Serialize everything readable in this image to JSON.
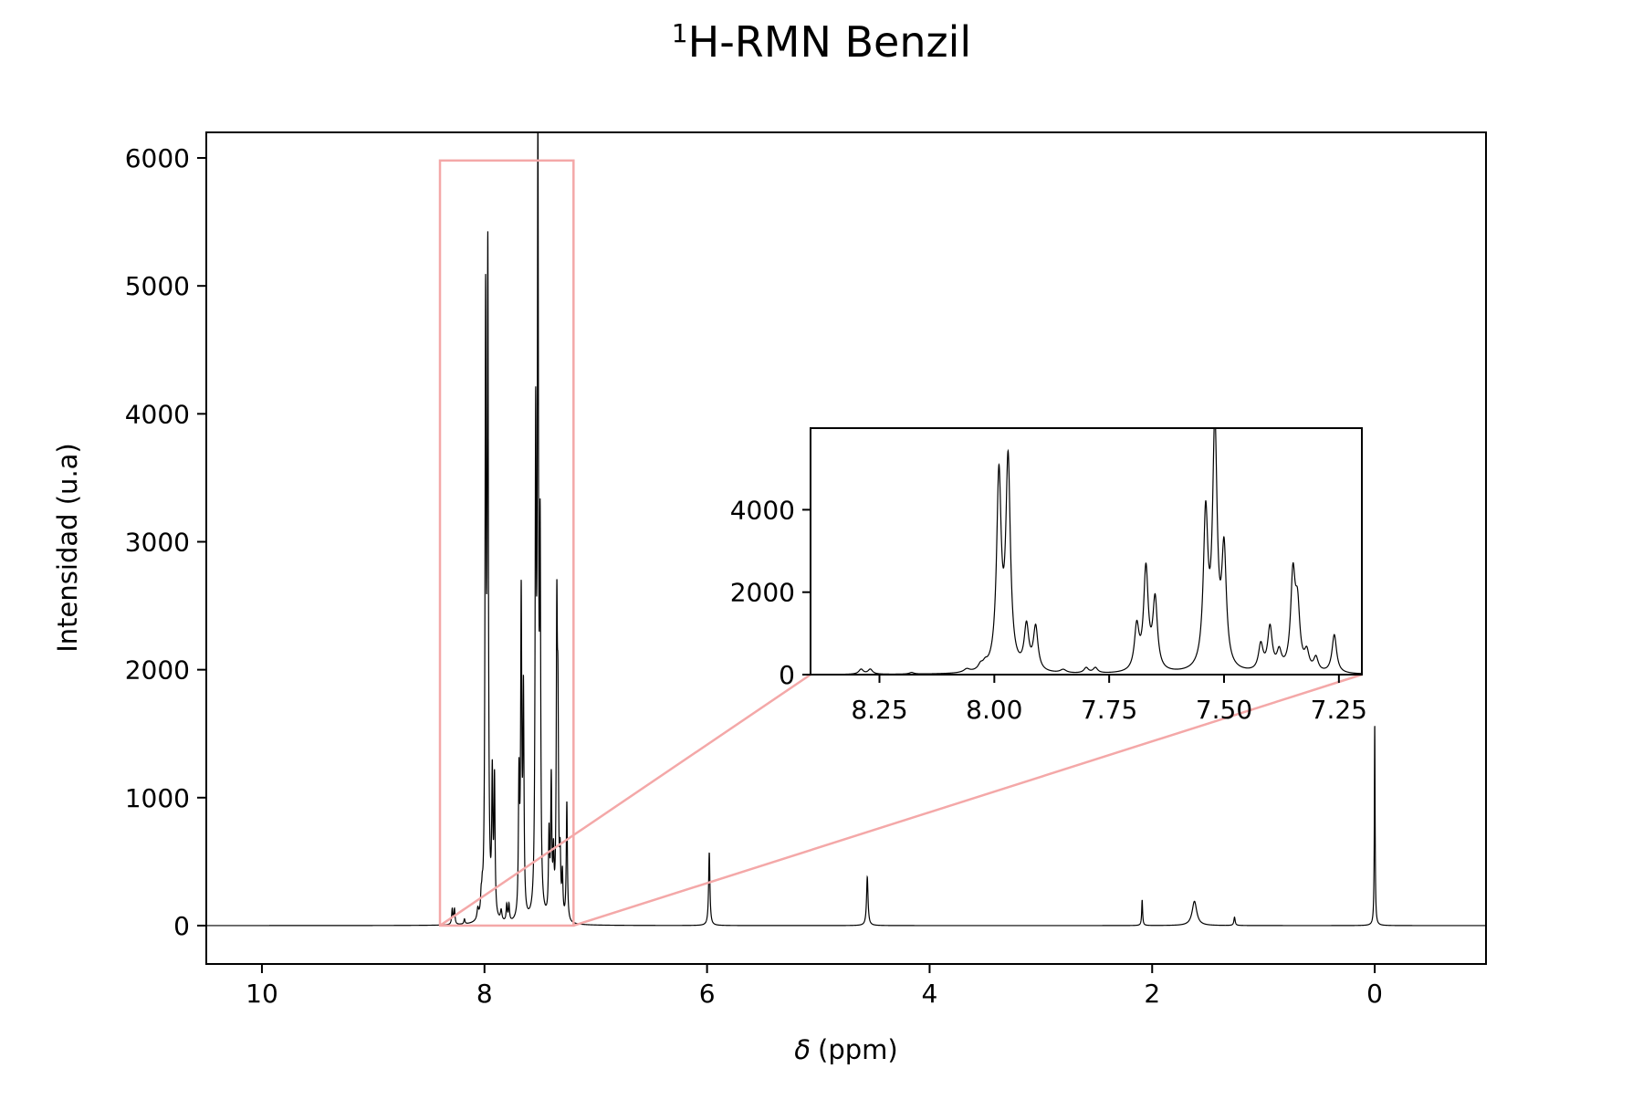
{
  "chart_data": [
    {
      "id": "main",
      "type": "line",
      "title_sup": "1",
      "title_main": "H-RMN Benzil",
      "xlabel_symbol": "δ",
      "xlabel_unit": "(ppm)",
      "ylabel": "Intensidad (u.a)",
      "xlim": [
        10.5,
        -1.0
      ],
      "ylim": [
        -300,
        6200
      ],
      "x_reversed": true,
      "xticks": [
        10,
        8,
        6,
        4,
        2,
        0
      ],
      "xtick_labels": [
        "10",
        "8",
        "6",
        "4",
        "2",
        "0"
      ],
      "yticks": [
        0,
        1000,
        2000,
        3000,
        4000,
        5000,
        6000
      ],
      "ytick_labels": [
        "0",
        "1000",
        "2000",
        "3000",
        "4000",
        "5000",
        "6000"
      ],
      "grid": false,
      "line_color": "#000000",
      "zoom_region": {
        "x": [
          8.4,
          7.2
        ],
        "y": [
          0,
          5980
        ]
      },
      "peaks": [
        {
          "x": 8.29,
          "h": 120,
          "w": 0.006
        },
        {
          "x": 8.27,
          "h": 120,
          "w": 0.006
        },
        {
          "x": 8.18,
          "h": 40,
          "w": 0.006
        },
        {
          "x": 8.06,
          "h": 80,
          "w": 0.008
        },
        {
          "x": 8.03,
          "h": 120,
          "w": 0.006
        },
        {
          "x": 8.02,
          "h": 120,
          "w": 0.006
        },
        {
          "x": 7.99,
          "h": 4650,
          "w": 0.006
        },
        {
          "x": 7.97,
          "h": 5000,
          "w": 0.006
        },
        {
          "x": 7.93,
          "h": 1050,
          "w": 0.006
        },
        {
          "x": 7.91,
          "h": 1050,
          "w": 0.006
        },
        {
          "x": 7.85,
          "h": 80,
          "w": 0.008
        },
        {
          "x": 7.8,
          "h": 130,
          "w": 0.006
        },
        {
          "x": 7.78,
          "h": 130,
          "w": 0.006
        },
        {
          "x": 7.69,
          "h": 1050,
          "w": 0.006
        },
        {
          "x": 7.67,
          "h": 2450,
          "w": 0.006
        },
        {
          "x": 7.65,
          "h": 1700,
          "w": 0.006
        },
        {
          "x": 7.54,
          "h": 3650,
          "w": 0.006
        },
        {
          "x": 7.52,
          "h": 5800,
          "w": 0.006
        },
        {
          "x": 7.5,
          "h": 2750,
          "w": 0.006
        },
        {
          "x": 7.42,
          "h": 630,
          "w": 0.006
        },
        {
          "x": 7.4,
          "h": 1050,
          "w": 0.006
        },
        {
          "x": 7.38,
          "h": 430,
          "w": 0.006
        },
        {
          "x": 7.35,
          "h": 2250,
          "w": 0.006
        },
        {
          "x": 7.34,
          "h": 1400,
          "w": 0.006
        },
        {
          "x": 7.32,
          "h": 420,
          "w": 0.006
        },
        {
          "x": 7.3,
          "h": 330,
          "w": 0.006
        },
        {
          "x": 7.26,
          "h": 930,
          "w": 0.006
        },
        {
          "x": 5.98,
          "h": 570,
          "w": 0.007
        },
        {
          "x": 4.56,
          "h": 380,
          "w": 0.008
        },
        {
          "x": 2.09,
          "h": 200,
          "w": 0.005
        },
        {
          "x": 1.62,
          "h": 190,
          "w": 0.025
        },
        {
          "x": 1.26,
          "h": 65,
          "w": 0.007
        },
        {
          "x": 0.0,
          "h": 1570,
          "w": 0.004
        }
      ]
    },
    {
      "id": "inset",
      "type": "line",
      "xlim": [
        8.4,
        7.2
      ],
      "ylim": [
        0,
        5980
      ],
      "x_reversed": true,
      "xticks": [
        8.25,
        8.0,
        7.75,
        7.5,
        7.25
      ],
      "xtick_labels": [
        "8.25",
        "8.00",
        "7.75",
        "7.50",
        "7.25"
      ],
      "yticks": [
        0,
        2000,
        4000
      ],
      "ytick_labels": [
        "0",
        "2000",
        "4000"
      ],
      "grid": false,
      "line_color": "#000000",
      "connector_color": "#f4a8a8"
    }
  ]
}
